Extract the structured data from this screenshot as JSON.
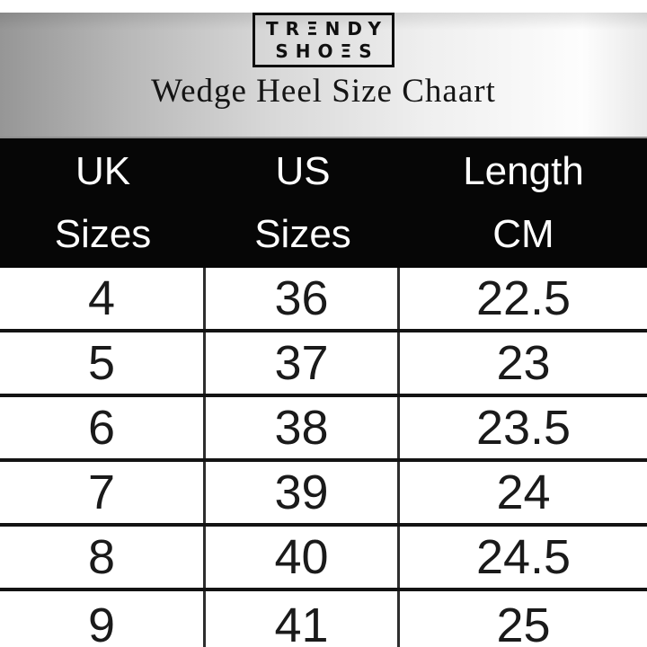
{
  "brand": {
    "line1": "TRΞNDY",
    "line2": "SHOΞS"
  },
  "title": "Wedge Heel Size Chaart",
  "chart_data": {
    "type": "table",
    "title": "Wedge Heel Size Chaart",
    "brand": "TRENDY SHOES",
    "columns": [
      {
        "line1": "UK",
        "line2": "Sizes"
      },
      {
        "line1": "US",
        "line2": "Sizes"
      },
      {
        "line1": "Length",
        "line2": "CM"
      }
    ],
    "rows": [
      [
        "4",
        "36",
        "22.5"
      ],
      [
        "5",
        "37",
        "23"
      ],
      [
        "6",
        "38",
        "23.5"
      ],
      [
        "7",
        "39",
        "24"
      ],
      [
        "8",
        "40",
        "24.5"
      ],
      [
        "9",
        "41",
        "25"
      ]
    ]
  },
  "colors": {
    "header_bg": "#060606",
    "header_text": "#ffffff",
    "row_bg": "#ffffff",
    "row_text": "#1a1a1a",
    "grid_line": "#131313",
    "band_left": "#969696",
    "band_right": "#fdfdfd"
  }
}
